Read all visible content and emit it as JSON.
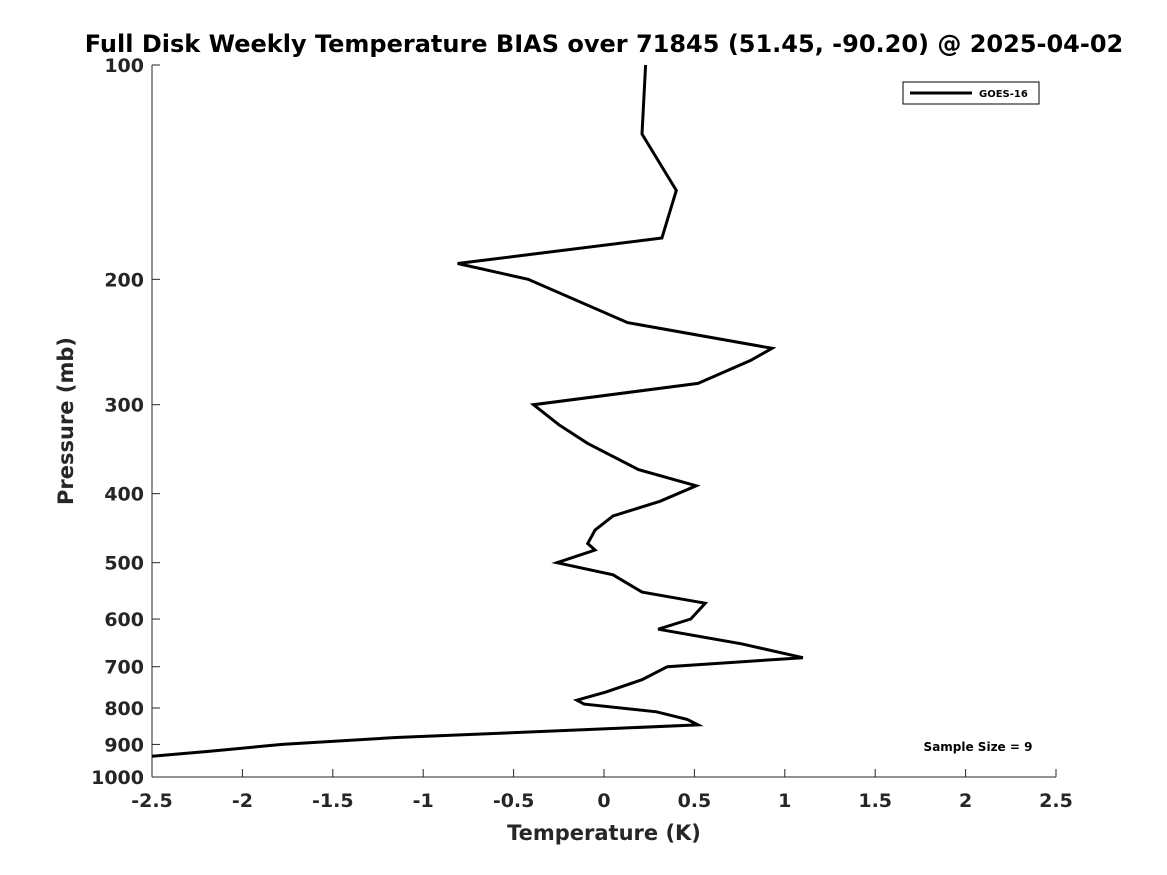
{
  "chart_data": {
    "type": "line",
    "title": "Full Disk Weekly Temperature BIAS over 71845 (51.45, -90.20) @ 2025-04-02",
    "xlabel": "Temperature (K)",
    "ylabel": "Pressure (mb)",
    "xlim": [
      -2.5,
      2.5
    ],
    "ylim": [
      100,
      1000
    ],
    "y_scale": "log",
    "y_reversed": true,
    "xticks": [
      -2.5,
      -2,
      -1.5,
      -1,
      -0.5,
      0,
      0.5,
      1,
      1.5,
      2,
      2.5
    ],
    "xtick_labels": [
      "-2.5",
      "-2",
      "-1.5",
      "-1",
      "-0.5",
      "0",
      "0.5",
      "1",
      "1.5",
      "2",
      "2.5"
    ],
    "yticks": [
      100,
      200,
      300,
      400,
      500,
      600,
      700,
      800,
      900,
      1000
    ],
    "ytick_labels": [
      "100",
      "200",
      "300",
      "400",
      "500",
      "600",
      "700",
      "800",
      "900",
      "1000"
    ],
    "grid": false,
    "legend_position": "top-right",
    "series": [
      {
        "name": "GOES-16",
        "color": "#000000",
        "points": [
          {
            "x": 0.23,
            "p": 100
          },
          {
            "x": 0.21,
            "p": 125
          },
          {
            "x": 0.4,
            "p": 150
          },
          {
            "x": 0.32,
            "p": 175
          },
          {
            "x": -0.81,
            "p": 190
          },
          {
            "x": -0.42,
            "p": 200
          },
          {
            "x": 0.13,
            "p": 230
          },
          {
            "x": 0.93,
            "p": 250
          },
          {
            "x": 0.81,
            "p": 260
          },
          {
            "x": 0.52,
            "p": 280
          },
          {
            "x": -0.39,
            "p": 300
          },
          {
            "x": -0.25,
            "p": 320
          },
          {
            "x": -0.09,
            "p": 340
          },
          {
            "x": 0.19,
            "p": 370
          },
          {
            "x": 0.51,
            "p": 390
          },
          {
            "x": 0.31,
            "p": 410
          },
          {
            "x": 0.05,
            "p": 430
          },
          {
            "x": -0.05,
            "p": 450
          },
          {
            "x": -0.09,
            "p": 470
          },
          {
            "x": -0.05,
            "p": 480
          },
          {
            "x": -0.26,
            "p": 500
          },
          {
            "x": 0.05,
            "p": 520
          },
          {
            "x": 0.21,
            "p": 550
          },
          {
            "x": 0.56,
            "p": 570
          },
          {
            "x": 0.48,
            "p": 600
          },
          {
            "x": 0.3,
            "p": 620
          },
          {
            "x": 0.76,
            "p": 650
          },
          {
            "x": 1.1,
            "p": 680
          },
          {
            "x": 0.35,
            "p": 700
          },
          {
            "x": 0.21,
            "p": 730
          },
          {
            "x": 0.01,
            "p": 760
          },
          {
            "x": -0.15,
            "p": 780
          },
          {
            "x": -0.11,
            "p": 790
          },
          {
            "x": 0.29,
            "p": 810
          },
          {
            "x": 0.46,
            "p": 830
          },
          {
            "x": 0.52,
            "p": 845
          },
          {
            "x": -0.2,
            "p": 860
          },
          {
            "x": -1.15,
            "p": 880
          },
          {
            "x": -1.78,
            "p": 900
          },
          {
            "x": -2.18,
            "p": 920
          },
          {
            "x": -2.5,
            "p": 935
          }
        ]
      }
    ],
    "annotation": "Sample Size = 9"
  }
}
